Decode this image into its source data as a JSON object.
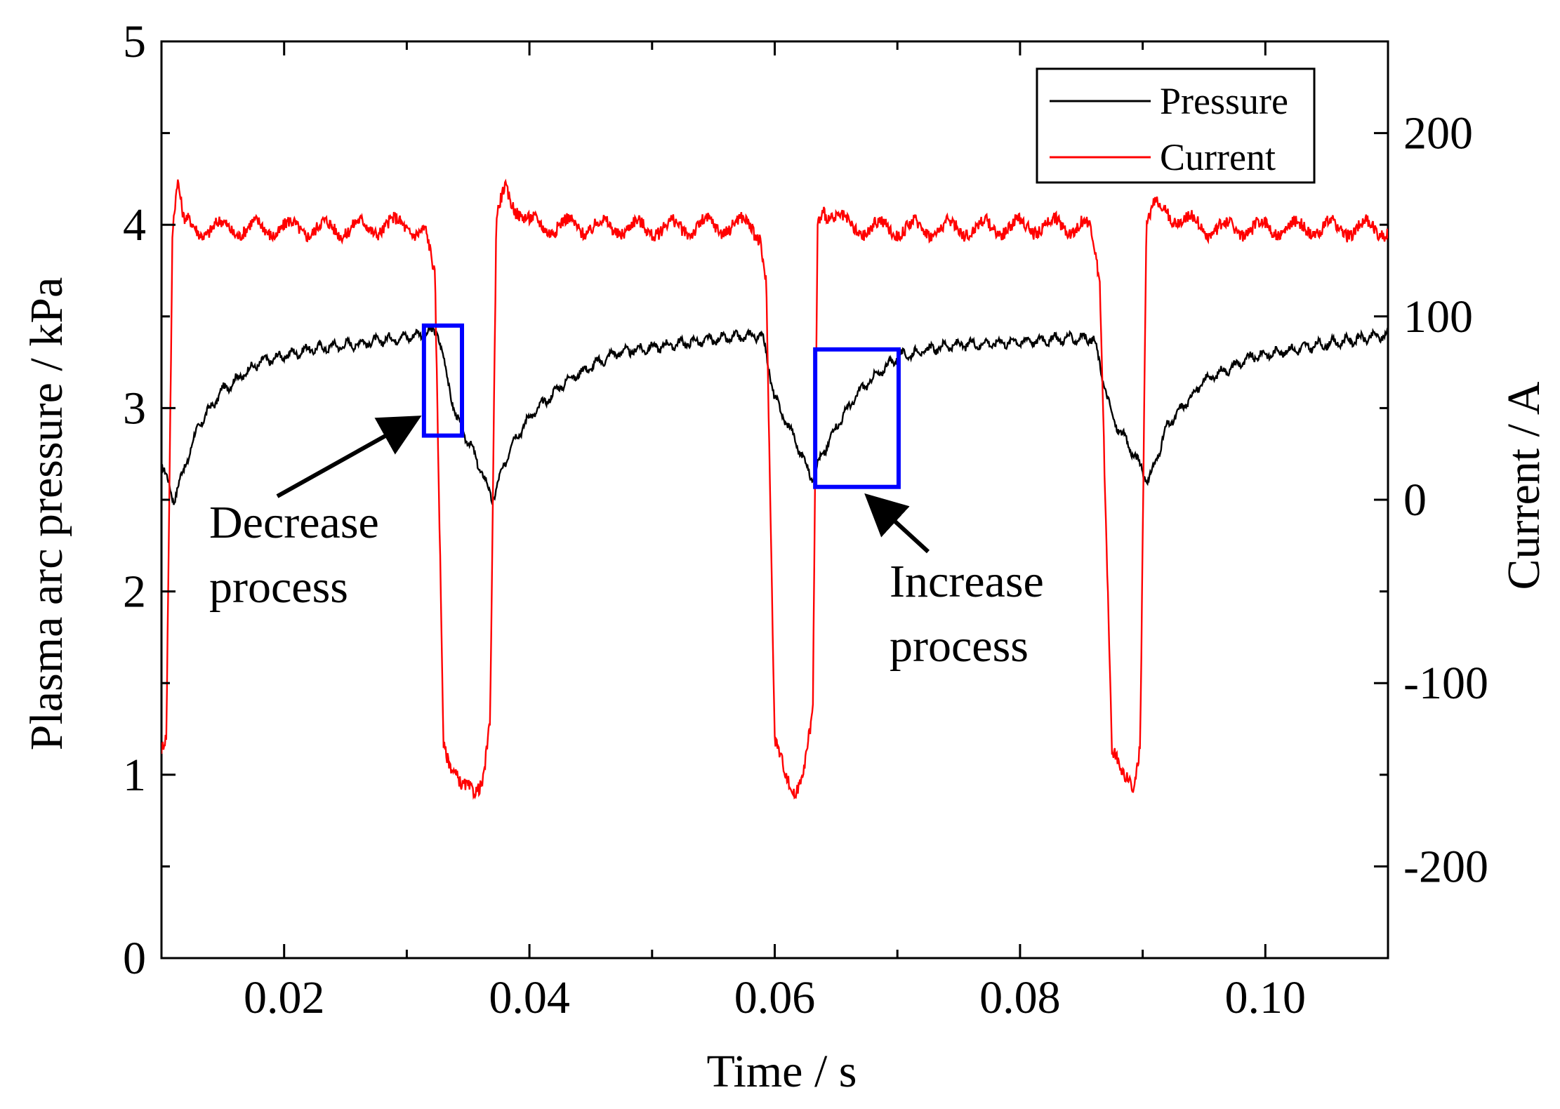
{
  "chart_data": {
    "type": "line",
    "title": "",
    "xlabel": "Time / s",
    "ylabel_left": "Plasma arc pressure / kPa",
    "ylabel_right": "Current / A",
    "xlim": [
      0.01,
      0.11
    ],
    "ylim_left": [
      0,
      5
    ],
    "ylim_right": [
      -250,
      250
    ],
    "x_ticks": [
      0.02,
      0.04,
      0.06,
      0.08,
      0.1
    ],
    "x_tick_labels": [
      "0.02",
      "0.04",
      "0.06",
      "0.08",
      "0.10"
    ],
    "y_left_ticks": [
      0,
      1,
      2,
      3,
      4,
      5
    ],
    "y_left_tick_labels": [
      "0",
      "1",
      "2",
      "3",
      "4",
      "5"
    ],
    "y_right_ticks": [
      -200,
      -100,
      0,
      100,
      200
    ],
    "y_right_tick_labels": [
      "-200",
      "-100",
      "0",
      "100",
      "200"
    ],
    "grid": false,
    "legend": {
      "position": "top-right",
      "entries": [
        {
          "name": "Pressure",
          "color": "#000000"
        },
        {
          "name": "Current",
          "color": "#ff0000"
        }
      ]
    },
    "series": [
      {
        "name": "Pressure",
        "axis": "left",
        "color": "#000000",
        "x": [
          0.01,
          0.011,
          0.0115,
          0.013,
          0.015,
          0.018,
          0.022,
          0.027,
          0.031,
          0.0325,
          0.034,
          0.0355,
          0.037,
          0.0385,
          0.04,
          0.043,
          0.047,
          0.052,
          0.056,
          0.059,
          0.06,
          0.0615,
          0.063,
          0.065,
          0.067,
          0.07,
          0.074,
          0.079,
          0.084,
          0.086,
          0.0875,
          0.089,
          0.0905,
          0.092,
          0.095,
          0.099,
          0.104,
          0.11
        ],
        "y": [
          2.7,
          2.5,
          2.6,
          2.9,
          3.1,
          3.25,
          3.32,
          3.36,
          3.4,
          3.42,
          2.95,
          2.75,
          2.5,
          2.8,
          2.95,
          3.15,
          3.3,
          3.35,
          3.38,
          3.4,
          3.05,
          2.85,
          2.62,
          2.9,
          3.1,
          3.28,
          3.34,
          3.36,
          3.38,
          3.38,
          2.95,
          2.78,
          2.6,
          2.9,
          3.15,
          3.28,
          3.34,
          3.4
        ]
      },
      {
        "name": "Current",
        "axis": "right",
        "color": "#ff0000",
        "x": [
          0.01,
          0.0104,
          0.0109,
          0.0113,
          0.0118,
          0.013,
          0.02,
          0.025,
          0.03,
          0.0315,
          0.0323,
          0.033,
          0.0337,
          0.0345,
          0.0355,
          0.0362,
          0.0368,
          0.0373,
          0.038,
          0.04,
          0.05,
          0.058,
          0.0588,
          0.0593,
          0.06,
          0.061,
          0.0617,
          0.0625,
          0.0631,
          0.0635,
          0.064,
          0.066,
          0.075,
          0.085,
          0.0858,
          0.0865,
          0.0875,
          0.0885,
          0.0893,
          0.0898,
          0.0903,
          0.091,
          0.095,
          0.105,
          0.11
        ],
        "y": [
          -135,
          -125,
          150,
          175,
          150,
          148,
          148,
          148,
          150,
          145,
          120,
          -130,
          -145,
          -160,
          -158,
          -150,
          -120,
          150,
          170,
          150,
          148,
          150,
          145,
          120,
          -135,
          -150,
          -158,
          -145,
          -120,
          150,
          160,
          148,
          148,
          150,
          145,
          120,
          -135,
          -155,
          -155,
          -130,
          150,
          160,
          148,
          148,
          148
        ]
      }
    ],
    "annotations": [
      {
        "text_lines": [
          "Decrease",
          "process"
        ],
        "box_x": [
          0.0314,
          0.0345
        ],
        "box_y_left": [
          2.85,
          3.45
        ]
      },
      {
        "text_lines": [
          "Increase",
          "process"
        ],
        "box_x": [
          0.0633,
          0.0701
        ],
        "box_y_left": [
          2.57,
          3.32
        ]
      }
    ]
  }
}
